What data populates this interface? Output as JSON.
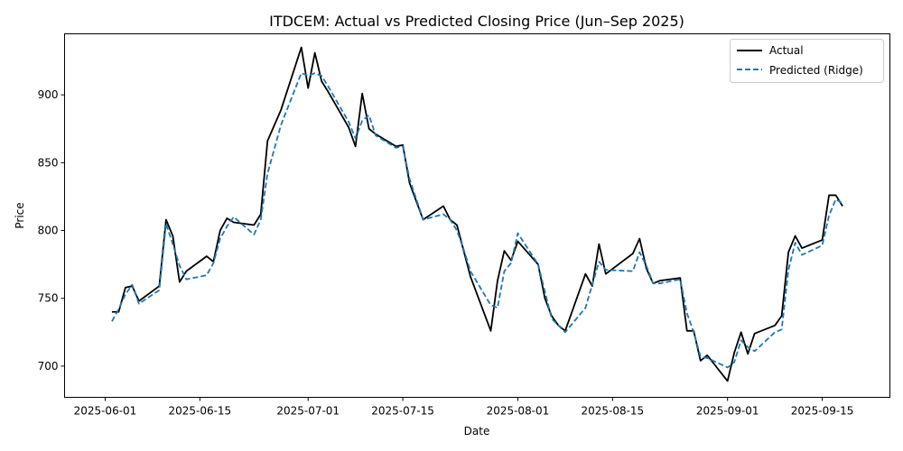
{
  "chart_data": {
    "type": "line",
    "title": "ITDCEM: Actual vs Predicted Closing Price (Jun–Sep 2025)",
    "xlabel": "Date",
    "ylabel": "Price",
    "xlim": [
      "2025-05-26",
      "2025-09-25"
    ],
    "ylim": [
      677,
      945
    ],
    "x_ticks": [
      "2025-06-01",
      "2025-06-15",
      "2025-07-01",
      "2025-07-15",
      "2025-08-01",
      "2025-08-15",
      "2025-09-01",
      "2025-09-15"
    ],
    "y_ticks": [
      700,
      750,
      800,
      850,
      900
    ],
    "grid": false,
    "legend_position": "top-right",
    "series": [
      {
        "name": "Actual",
        "color": "#000000",
        "style": "solid",
        "points": [
          [
            "2025-06-02",
            740
          ],
          [
            "2025-06-03",
            740
          ],
          [
            "2025-06-04",
            758
          ],
          [
            "2025-06-05",
            759
          ],
          [
            "2025-06-06",
            748
          ],
          [
            "2025-06-09",
            759
          ],
          [
            "2025-06-10",
            808
          ],
          [
            "2025-06-11",
            796
          ],
          [
            "2025-06-12",
            762
          ],
          [
            "2025-06-13",
            770
          ],
          [
            "2025-06-16",
            781
          ],
          [
            "2025-06-17",
            777
          ],
          [
            "2025-06-18",
            800
          ],
          [
            "2025-06-19",
            809
          ],
          [
            "2025-06-20",
            806
          ],
          [
            "2025-06-23",
            804
          ],
          [
            "2025-06-24",
            812
          ],
          [
            "2025-06-25",
            866
          ],
          [
            "2025-06-27",
            889
          ],
          [
            "2025-06-30",
            935
          ],
          [
            "2025-07-01",
            905
          ],
          [
            "2025-07-02",
            931
          ],
          [
            "2025-07-03",
            910
          ],
          [
            "2025-07-04",
            902
          ],
          [
            "2025-07-07",
            876
          ],
          [
            "2025-07-08",
            862
          ],
          [
            "2025-07-09",
            901
          ],
          [
            "2025-07-10",
            875
          ],
          [
            "2025-07-11",
            871
          ],
          [
            "2025-07-14",
            862
          ],
          [
            "2025-07-15",
            863
          ],
          [
            "2025-07-16",
            835
          ],
          [
            "2025-07-18",
            808
          ],
          [
            "2025-07-21",
            818
          ],
          [
            "2025-07-22",
            808
          ],
          [
            "2025-07-23",
            804
          ],
          [
            "2025-07-24",
            785
          ],
          [
            "2025-07-25",
            766
          ],
          [
            "2025-07-28",
            726
          ],
          [
            "2025-07-29",
            763
          ],
          [
            "2025-07-30",
            785
          ],
          [
            "2025-07-31",
            778
          ],
          [
            "2025-08-01",
            792
          ],
          [
            "2025-08-04",
            775
          ],
          [
            "2025-08-05",
            750
          ],
          [
            "2025-08-06",
            737
          ],
          [
            "2025-08-07",
            730
          ],
          [
            "2025-08-08",
            726
          ],
          [
            "2025-08-11",
            768
          ],
          [
            "2025-08-12",
            759
          ],
          [
            "2025-08-13",
            790
          ],
          [
            "2025-08-14",
            768
          ],
          [
            "2025-08-18",
            783
          ],
          [
            "2025-08-19",
            794
          ],
          [
            "2025-08-20",
            772
          ],
          [
            "2025-08-21",
            761
          ],
          [
            "2025-08-22",
            763
          ],
          [
            "2025-08-25",
            765
          ],
          [
            "2025-08-26",
            726
          ],
          [
            "2025-08-27",
            726
          ],
          [
            "2025-08-28",
            704
          ],
          [
            "2025-08-29",
            708
          ],
          [
            "2025-09-01",
            689
          ],
          [
            "2025-09-02",
            710
          ],
          [
            "2025-09-03",
            725
          ],
          [
            "2025-09-04",
            709
          ],
          [
            "2025-09-05",
            724
          ],
          [
            "2025-09-08",
            730
          ],
          [
            "2025-09-09",
            737
          ],
          [
            "2025-09-10",
            784
          ],
          [
            "2025-09-11",
            796
          ],
          [
            "2025-09-12",
            787
          ],
          [
            "2025-09-15",
            793
          ],
          [
            "2025-09-16",
            826
          ],
          [
            "2025-09-17",
            826
          ],
          [
            "2025-09-18",
            818
          ]
        ]
      },
      {
        "name": "Predicted (Ridge)",
        "color": "#1f77b4",
        "style": "dashed",
        "points": [
          [
            "2025-06-02",
            733
          ],
          [
            "2025-06-03",
            742
          ],
          [
            "2025-06-04",
            753
          ],
          [
            "2025-06-05",
            760
          ],
          [
            "2025-06-06",
            746
          ],
          [
            "2025-06-09",
            756
          ],
          [
            "2025-06-10",
            805
          ],
          [
            "2025-06-11",
            790
          ],
          [
            "2025-06-12",
            774
          ],
          [
            "2025-06-13",
            764
          ],
          [
            "2025-06-16",
            767
          ],
          [
            "2025-06-17",
            776
          ],
          [
            "2025-06-18",
            794
          ],
          [
            "2025-06-19",
            803
          ],
          [
            "2025-06-20",
            810
          ],
          [
            "2025-06-23",
            797
          ],
          [
            "2025-06-24",
            808
          ],
          [
            "2025-06-25",
            842
          ],
          [
            "2025-06-27",
            878
          ],
          [
            "2025-06-30",
            916
          ],
          [
            "2025-07-01",
            914
          ],
          [
            "2025-07-02",
            916
          ],
          [
            "2025-07-03",
            914
          ],
          [
            "2025-07-04",
            906
          ],
          [
            "2025-07-07",
            880
          ],
          [
            "2025-07-08",
            868
          ],
          [
            "2025-07-09",
            881
          ],
          [
            "2025-07-10",
            885
          ],
          [
            "2025-07-11",
            870
          ],
          [
            "2025-07-14",
            861
          ],
          [
            "2025-07-15",
            862
          ],
          [
            "2025-07-16",
            838
          ],
          [
            "2025-07-18",
            808
          ],
          [
            "2025-07-21",
            812
          ],
          [
            "2025-07-22",
            808
          ],
          [
            "2025-07-23",
            800
          ],
          [
            "2025-07-24",
            786
          ],
          [
            "2025-07-25",
            770
          ],
          [
            "2025-07-28",
            745
          ],
          [
            "2025-07-29",
            743
          ],
          [
            "2025-07-30",
            770
          ],
          [
            "2025-07-31",
            776
          ],
          [
            "2025-08-01",
            798
          ],
          [
            "2025-08-04",
            775
          ],
          [
            "2025-08-05",
            755
          ],
          [
            "2025-08-06",
            735
          ],
          [
            "2025-08-07",
            730
          ],
          [
            "2025-08-08",
            725
          ],
          [
            "2025-08-11",
            743
          ],
          [
            "2025-08-12",
            760
          ],
          [
            "2025-08-13",
            777
          ],
          [
            "2025-08-14",
            771
          ],
          [
            "2025-08-18",
            770
          ],
          [
            "2025-08-19",
            784
          ],
          [
            "2025-08-20",
            774
          ],
          [
            "2025-08-21",
            761
          ],
          [
            "2025-08-22",
            761
          ],
          [
            "2025-08-25",
            764
          ],
          [
            "2025-08-26",
            739
          ],
          [
            "2025-08-27",
            725
          ],
          [
            "2025-08-28",
            707
          ],
          [
            "2025-08-29",
            706
          ],
          [
            "2025-09-01",
            699
          ],
          [
            "2025-09-02",
            703
          ],
          [
            "2025-09-03",
            719
          ],
          [
            "2025-09-04",
            714
          ],
          [
            "2025-09-05",
            711
          ],
          [
            "2025-09-08",
            725
          ],
          [
            "2025-09-09",
            727
          ],
          [
            "2025-09-10",
            771
          ],
          [
            "2025-09-11",
            791
          ],
          [
            "2025-09-12",
            782
          ],
          [
            "2025-09-15",
            789
          ],
          [
            "2025-09-16",
            811
          ],
          [
            "2025-09-17",
            823
          ],
          [
            "2025-09-18",
            820
          ]
        ]
      }
    ]
  }
}
